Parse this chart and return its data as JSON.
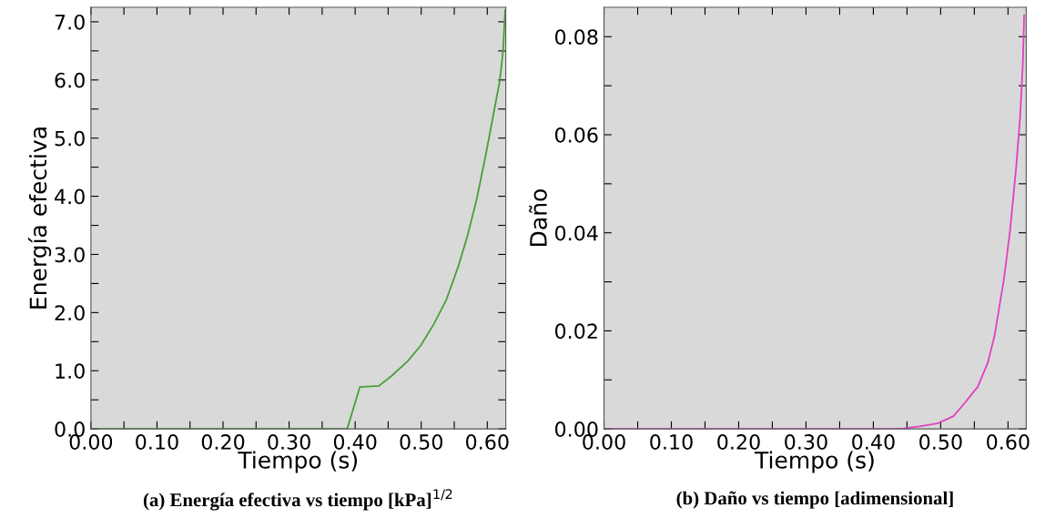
{
  "chart_data": [
    {
      "type": "line",
      "xlabel": "Tiempo (s)",
      "ylabel": "Energía efectiva",
      "annotations": [
        "(a) Energía efectiva vs tiempo [kPa]$^{1/2}$"
      ],
      "series": [
        {
          "color": "#4a9e3a",
          "x": [
            0,
            0.388,
            0.407,
            0.436,
            0.455,
            0.48,
            0.499,
            0.519,
            0.538,
            0.556,
            0.57,
            0.584,
            0.598,
            0.612,
            0.619,
            0.624,
            0.627
          ],
          "values": [
            0,
            0,
            0.72,
            0.74,
            0.91,
            1.17,
            1.43,
            1.8,
            2.22,
            2.79,
            3.32,
            3.95,
            4.73,
            5.57,
            5.99,
            6.51,
            7.2
          ]
        }
      ],
      "xlim": [
        0,
        0.628
      ],
      "ylim": [
        0,
        7.25
      ],
      "xticks": [
        {
          "value": 0,
          "label": "0.00"
        },
        {
          "value": 0.05,
          "label": null
        },
        {
          "value": 0.1,
          "label": "0.10"
        },
        {
          "value": 0.15,
          "label": null
        },
        {
          "value": 0.2,
          "label": "0.20"
        },
        {
          "value": 0.25,
          "label": null
        },
        {
          "value": 0.3,
          "label": "0.30"
        },
        {
          "value": 0.35,
          "label": null
        },
        {
          "value": 0.4,
          "label": "0.40"
        },
        {
          "value": 0.45,
          "label": null
        },
        {
          "value": 0.5,
          "label": "0.50"
        },
        {
          "value": 0.55,
          "label": null
        },
        {
          "value": 0.6,
          "label": "0.60"
        }
      ],
      "yticks": [
        {
          "value": 0,
          "label": "0.0"
        },
        {
          "value": 0.5,
          "label": null
        },
        {
          "value": 1,
          "label": "1.0"
        },
        {
          "value": 1.5,
          "label": null
        },
        {
          "value": 2,
          "label": "2.0"
        },
        {
          "value": 2.5,
          "label": null
        },
        {
          "value": 3,
          "label": "3.0"
        },
        {
          "value": 3.5,
          "label": null
        },
        {
          "value": 4,
          "label": "4.0"
        },
        {
          "value": 4.5,
          "label": null
        },
        {
          "value": 5,
          "label": "5.0"
        },
        {
          "value": 5.5,
          "label": null
        },
        {
          "value": 6,
          "label": "6.0"
        },
        {
          "value": 6.5,
          "label": null
        },
        {
          "value": 7,
          "label": "7.0"
        }
      ],
      "grid": false,
      "marker": "none",
      "line_style": "solid"
    },
    {
      "type": "line",
      "xlabel": "Tiempo (s)",
      "ylabel": "Daño",
      "annotations": [
        "(b) Daño vs tiempo [adimensional]"
      ],
      "series": [
        {
          "color": "#e040c0",
          "x": [
            0,
            0.43,
            0.445,
            0.468,
            0.495,
            0.519,
            0.537,
            0.555,
            0.57,
            0.58,
            0.594,
            0.603,
            0.612,
            0.618,
            0.622,
            0.624
          ],
          "values": [
            0,
            0,
            0.0001,
            0.0005,
            0.0011,
            0.0026,
            0.0055,
            0.0086,
            0.0135,
            0.019,
            0.0306,
            0.0404,
            0.0532,
            0.0636,
            0.0746,
            0.0844
          ]
        }
      ],
      "xlim": [
        0,
        0.627
      ],
      "ylim": [
        0,
        0.086
      ],
      "xticks": [
        {
          "value": 0,
          "label": "0.00"
        },
        {
          "value": 0.05,
          "label": null
        },
        {
          "value": 0.1,
          "label": "0.10"
        },
        {
          "value": 0.15,
          "label": null
        },
        {
          "value": 0.2,
          "label": "0.20"
        },
        {
          "value": 0.25,
          "label": null
        },
        {
          "value": 0.3,
          "label": "0.30"
        },
        {
          "value": 0.35,
          "label": null
        },
        {
          "value": 0.4,
          "label": "0.40"
        },
        {
          "value": 0.45,
          "label": null
        },
        {
          "value": 0.5,
          "label": "0.50"
        },
        {
          "value": 0.55,
          "label": null
        },
        {
          "value": 0.6,
          "label": "0.60"
        }
      ],
      "yticks": [
        {
          "value": 0,
          "label": "0.00"
        },
        {
          "value": 0.01,
          "label": null
        },
        {
          "value": 0.02,
          "label": "0.02"
        },
        {
          "value": 0.03,
          "label": null
        },
        {
          "value": 0.04,
          "label": "0.04"
        },
        {
          "value": 0.05,
          "label": null
        },
        {
          "value": 0.06,
          "label": "0.06"
        },
        {
          "value": 0.07,
          "label": null
        },
        {
          "value": 0.08,
          "label": "0.08"
        }
      ],
      "grid": false,
      "marker": "none",
      "line_style": "solid"
    }
  ]
}
